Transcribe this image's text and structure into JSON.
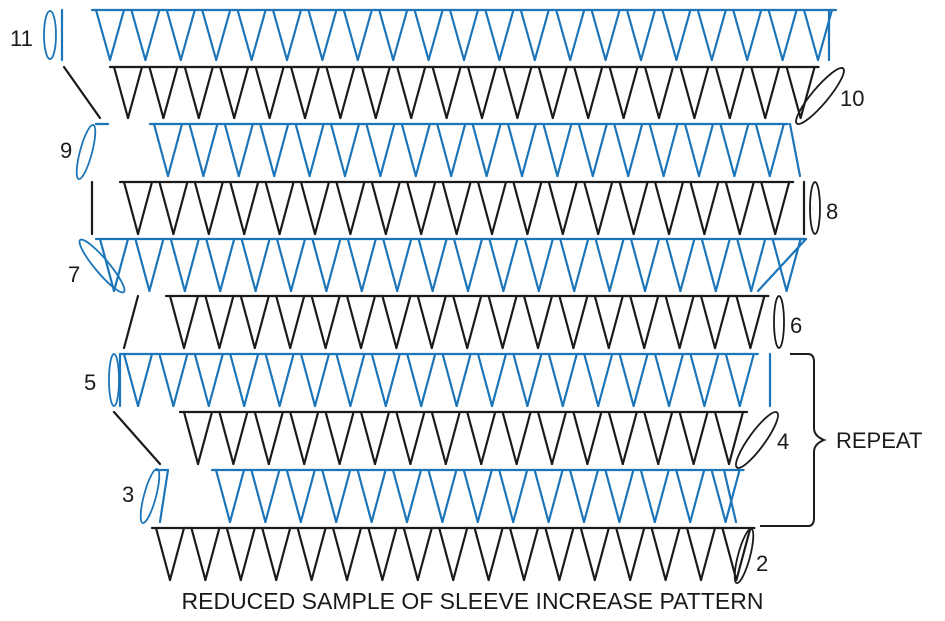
{
  "diagram": {
    "caption": "REDUCED SAMPLE OF SLEEVE INCREASE PATTERN",
    "repeat_label": "REPEAT",
    "row_labels": [
      "2",
      "3",
      "4",
      "5",
      "6",
      "7",
      "8",
      "9",
      "10",
      "11"
    ],
    "colors": {
      "odd_rows": "#1b75b8",
      "even_rows": "#1a1a1a"
    }
  }
}
